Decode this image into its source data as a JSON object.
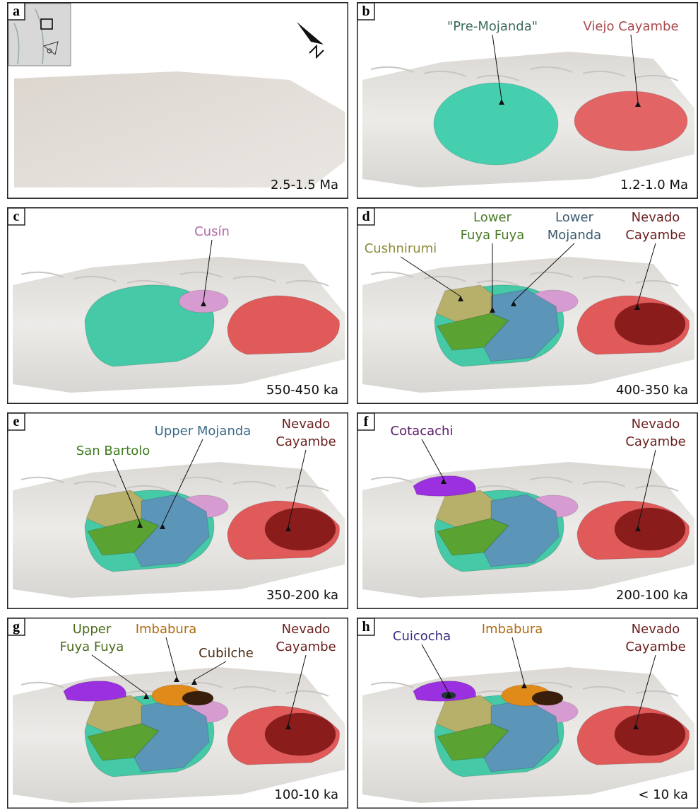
{
  "panels": [
    {
      "letter": "a",
      "age": "2.5-1.5 Ma",
      "labels": []
    },
    {
      "letter": "b",
      "age": "1.2-1.0 Ma",
      "labels": [
        {
          "lines": [
            "\"Pre-Mojanda\""
          ],
          "color": "#3b6b57"
        },
        {
          "lines": [
            "Viejo Cayambe"
          ],
          "color": "#a8484a"
        }
      ]
    },
    {
      "letter": "c",
      "age": "550-450 ka",
      "labels": [
        {
          "lines": [
            "Cusín"
          ],
          "color": "#b06aa8"
        }
      ]
    },
    {
      "letter": "d",
      "age": "400-350 ka",
      "labels": [
        {
          "lines": [
            "Cushnirumi"
          ],
          "color": "#8a8a3a"
        },
        {
          "lines": [
            "Lower",
            "Fuya Fuya"
          ],
          "color": "#4a7a2a"
        },
        {
          "lines": [
            "Lower",
            "Mojanda"
          ],
          "color": "#3a5a70"
        },
        {
          "lines": [
            "Nevado",
            "Cayambe"
          ],
          "color": "#6b1e1e"
        }
      ]
    },
    {
      "letter": "e",
      "age": "350-200 ka",
      "labels": [
        {
          "lines": [
            "San Bartolo"
          ],
          "color": "#3f7a1e"
        },
        {
          "lines": [
            "Upper Mojanda"
          ],
          "color": "#3a6a88"
        },
        {
          "lines": [
            "Nevado",
            "Cayambe"
          ],
          "color": "#6b1e1e"
        }
      ]
    },
    {
      "letter": "f",
      "age": "200-100 ka",
      "labels": [
        {
          "lines": [
            "Cotacachi"
          ],
          "color": "#5a1a6a"
        },
        {
          "lines": [
            "Nevado",
            "Cayambe"
          ],
          "color": "#6b1e1e"
        }
      ]
    },
    {
      "letter": "g",
      "age": "100-10 ka",
      "labels": [
        {
          "lines": [
            "Upper",
            "Fuya Fuya"
          ],
          "color": "#4a6a1a"
        },
        {
          "lines": [
            "Imbabura"
          ],
          "color": "#b06a10"
        },
        {
          "lines": [
            "Cubilche"
          ],
          "color": "#4a2a10"
        },
        {
          "lines": [
            "Nevado",
            "Cayambe"
          ],
          "color": "#6b1e1e"
        }
      ]
    },
    {
      "letter": "h",
      "age": "< 10 ka",
      "labels": [
        {
          "lines": [
            "Cuicocha"
          ],
          "color": "#3a2a80"
        },
        {
          "lines": [
            "Imbabura"
          ],
          "color": "#b06a10"
        },
        {
          "lines": [
            "Nevado",
            "Cayambe"
          ],
          "color": "#6b1e1e"
        }
      ]
    }
  ]
}
